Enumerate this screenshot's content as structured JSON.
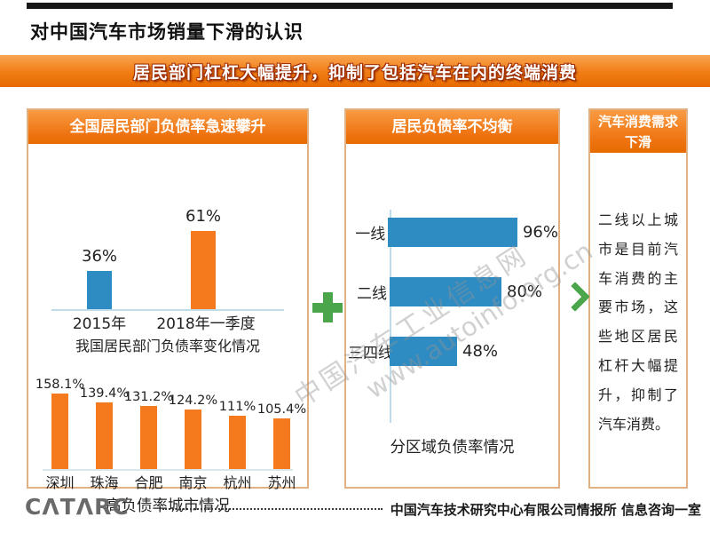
{
  "page": {
    "title": "对中国汽车市场销量下滑的认识",
    "banner": "居民部门杠杠大幅提升，抑制了包括汽车在内的终端消费"
  },
  "panels": {
    "left": {
      "header": "全国居民部门负债率急速攀升",
      "chart1_caption": "我国居民部门负债率变化情况",
      "chart2_caption": "高负债率城市情况"
    },
    "middle": {
      "header": "居民负债率不均衡",
      "chart_caption": "分区域负债率情况"
    },
    "right": {
      "header": "汽车消费需求下滑",
      "body": "二线以上城市是目前汽车消费的主要市场，这些地区居民杠杆大幅提升，抑制了汽车消费。"
    }
  },
  "watermark": {
    "line1": "中国汽车工业信息网",
    "line2": "www.autoinfo.org.cn"
  },
  "footer": {
    "logo_text": "CΛTΛRC",
    "credit": "中国汽车技术研究中心有限公司情报所  信息咨询一室"
  },
  "colors": {
    "accent_orange": "#EF7412",
    "bar_blue": "#2E8CC3",
    "bar_orange": "#F5791D",
    "connector_green": "#4BA64B",
    "panel_border": "#E2B183",
    "axis_blue": "#BFDDE9"
  },
  "chart_data": [
    {
      "id": "national_leverage",
      "type": "bar",
      "title": "我国居民部门负债率变化情况",
      "categories": [
        "2015年",
        "2018年一季度"
      ],
      "values": [
        36,
        61
      ],
      "labels": [
        "36%",
        "61%"
      ],
      "bar_colors": [
        "#2E8CC3",
        "#F5791D"
      ],
      "unit": "%",
      "grid": false,
      "legend": false
    },
    {
      "id": "high_debt_cities",
      "type": "bar",
      "title": "高负债率城市情况",
      "categories": [
        "深圳",
        "珠海",
        "合肥",
        "南京",
        "杭州",
        "苏州"
      ],
      "values": [
        158.1,
        139.4,
        131.2,
        124.2,
        111,
        105.4
      ],
      "labels": [
        "158.1%",
        "139.4%",
        "131.2%",
        "124.2%",
        "111%",
        "105.4%"
      ],
      "bar_colors": [
        "#F5791D"
      ],
      "unit": "%",
      "grid": false,
      "legend": false
    },
    {
      "id": "regional_debt",
      "type": "bar_horizontal",
      "title": "分区域负债率情况",
      "categories": [
        "一线",
        "二线",
        "三四线"
      ],
      "values": [
        96,
        80,
        48
      ],
      "labels": [
        "96%",
        "80%",
        "48%"
      ],
      "bar_colors": [
        "#2E8CC3"
      ],
      "unit": "%",
      "grid": false,
      "legend": false
    }
  ]
}
